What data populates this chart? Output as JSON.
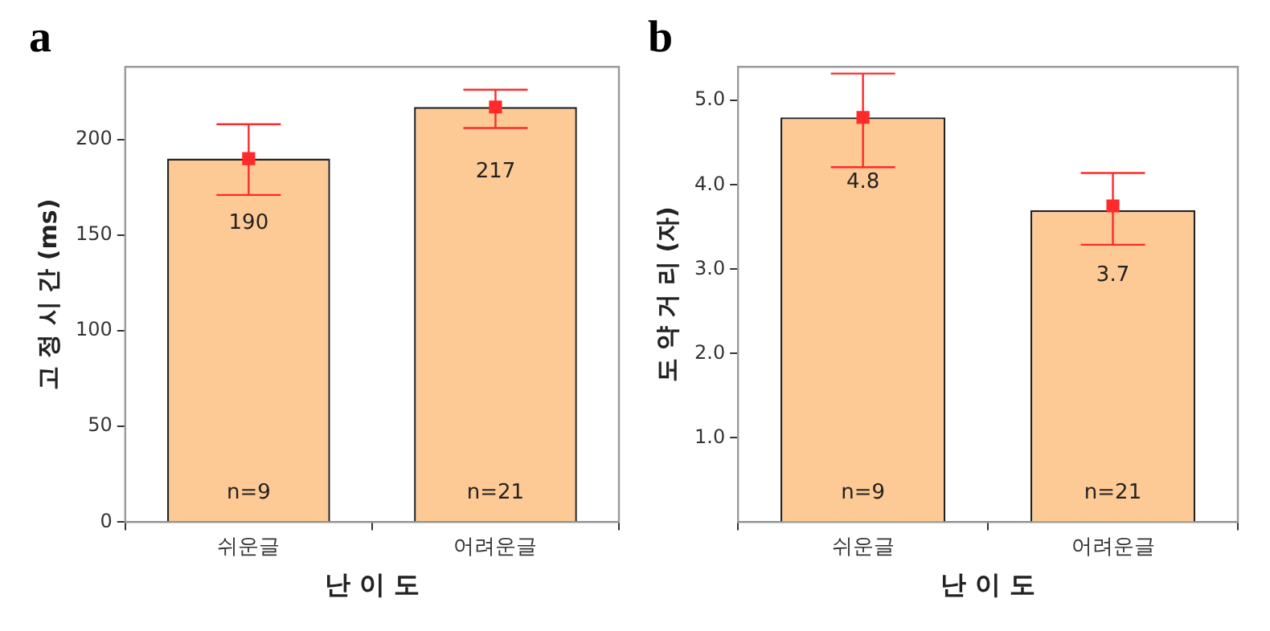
{
  "chart_data": [
    {
      "type": "bar",
      "title": "a",
      "categories": [
        "쉬운글",
        "어려운글"
      ],
      "xlabel": "난 이 도",
      "ylabel": "고 정 시 간 (ms)",
      "ylim": [
        0,
        238
      ],
      "yticks": [
        0,
        50,
        100,
        150,
        200
      ],
      "grid": false,
      "legend": false,
      "series": [
        {
          "color": "#fdc994",
          "values": [
            190,
            217
          ],
          "value_labels": [
            "190",
            "217"
          ]
        },
        {
          "type": "scatter",
          "color": "#ff2a2a",
          "marker": "square",
          "x": [
            "쉬운글",
            "어려운글"
          ],
          "values": [
            190,
            217
          ],
          "errors": [
            [
              171,
              208
            ],
            [
              206,
              226
            ]
          ]
        }
      ],
      "annotations": [
        "n=9",
        "n=21"
      ]
    },
    {
      "type": "bar",
      "title": "b",
      "categories": [
        "쉬운글",
        "어려운글"
      ],
      "xlabel": "난 이 도",
      "ylabel": "도 약 거 리 (자)",
      "ylim": [
        0,
        5.4
      ],
      "yticks": [
        {
          "value": 1,
          "label": "1.0"
        },
        {
          "value": 2,
          "label": "2.0"
        },
        {
          "value": 3,
          "label": "3.0"
        },
        {
          "value": 4,
          "label": "4.0"
        },
        {
          "value": 5,
          "label": "5.0"
        }
      ],
      "grid": false,
      "legend": false,
      "series": [
        {
          "color": "#fdc994",
          "values": [
            4.8,
            3.7
          ],
          "value_labels": [
            "4.8",
            "3.7"
          ]
        },
        {
          "type": "scatter",
          "color": "#ff2a2a",
          "marker": "square",
          "x": [
            "쉬운글",
            "어려운글"
          ],
          "values": [
            4.8,
            3.75
          ],
          "errors": [
            [
              4.21,
              5.32
            ],
            [
              3.29,
              4.14
            ]
          ]
        }
      ],
      "annotations": [
        "n=9",
        "n=21"
      ]
    }
  ]
}
